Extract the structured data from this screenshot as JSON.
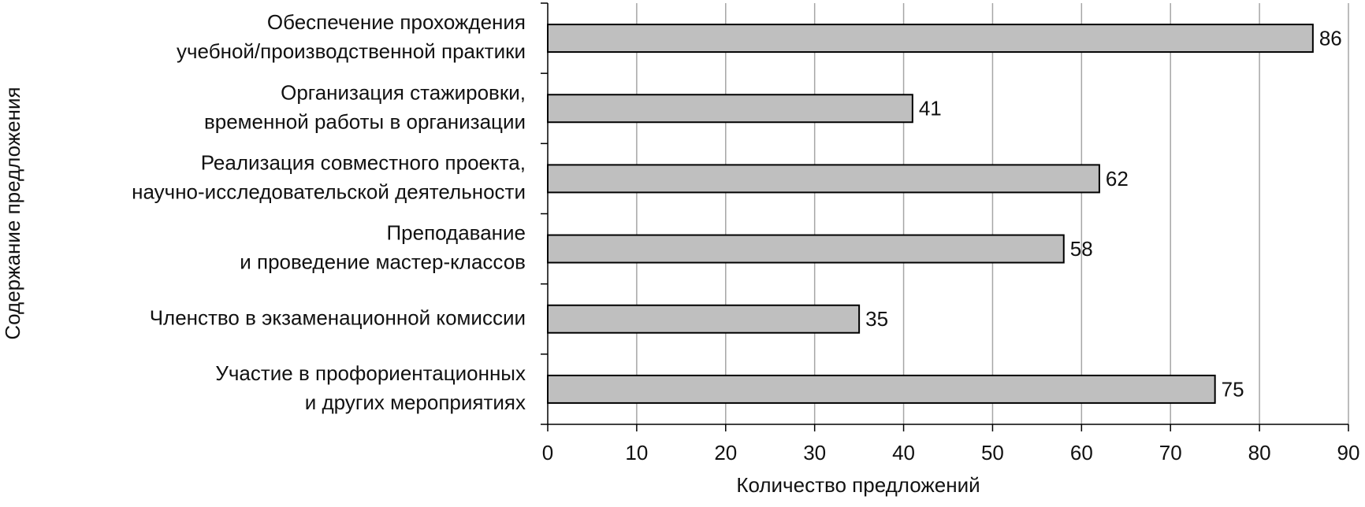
{
  "chart_data": {
    "type": "barh",
    "xlabel": "Количество предложений",
    "ylabel": "Содержание предложения",
    "categories": [
      "Обеспечение прохождения\nучебной/производственной практики",
      "Организация стажировки,\nвременной работы в организации",
      "Реализация совместного проекта,\nнаучно-исследовательской деятельности",
      "Преподавание\nи проведение мастер-классов",
      "Членство в экзаменационной комиссии",
      "Участие в профориентационных\nи других мероприятиях"
    ],
    "values": [
      86,
      41,
      62,
      58,
      35,
      75
    ],
    "color": "#bfbfbf",
    "xlim": [
      0,
      90
    ],
    "xticks": [
      0,
      10,
      20,
      30,
      40,
      50,
      60,
      70,
      80,
      90
    ],
    "grid": true
  }
}
